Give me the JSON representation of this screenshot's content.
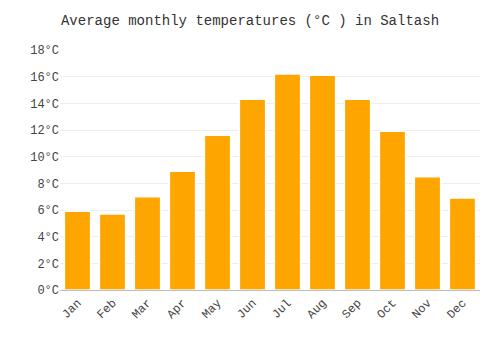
{
  "chart_data": {
    "type": "bar",
    "title": "Average monthly temperatures (°C ) in Saltash",
    "categories": [
      "Jan",
      "Feb",
      "Mar",
      "Apr",
      "May",
      "Jun",
      "Jul",
      "Aug",
      "Sep",
      "Oct",
      "Nov",
      "Dec"
    ],
    "values": [
      5.9,
      5.7,
      7.0,
      8.9,
      11.6,
      14.3,
      16.2,
      16.1,
      14.3,
      11.9,
      8.5,
      6.9
    ],
    "color": "#FFA500",
    "ylim": [
      0,
      18
    ],
    "yticks": [
      {
        "value": 0,
        "label": "0°C"
      },
      {
        "value": 2,
        "label": "2°C"
      },
      {
        "value": 4,
        "label": "4°C"
      },
      {
        "value": 6,
        "label": "6°C"
      },
      {
        "value": 8,
        "label": "8°C"
      },
      {
        "value": 10,
        "label": "10°C"
      },
      {
        "value": 12,
        "label": "12°C"
      },
      {
        "value": 14,
        "label": "14°C"
      },
      {
        "value": 16,
        "label": "16°C"
      },
      {
        "value": 18,
        "label": "18°C"
      }
    ],
    "grid": true
  }
}
